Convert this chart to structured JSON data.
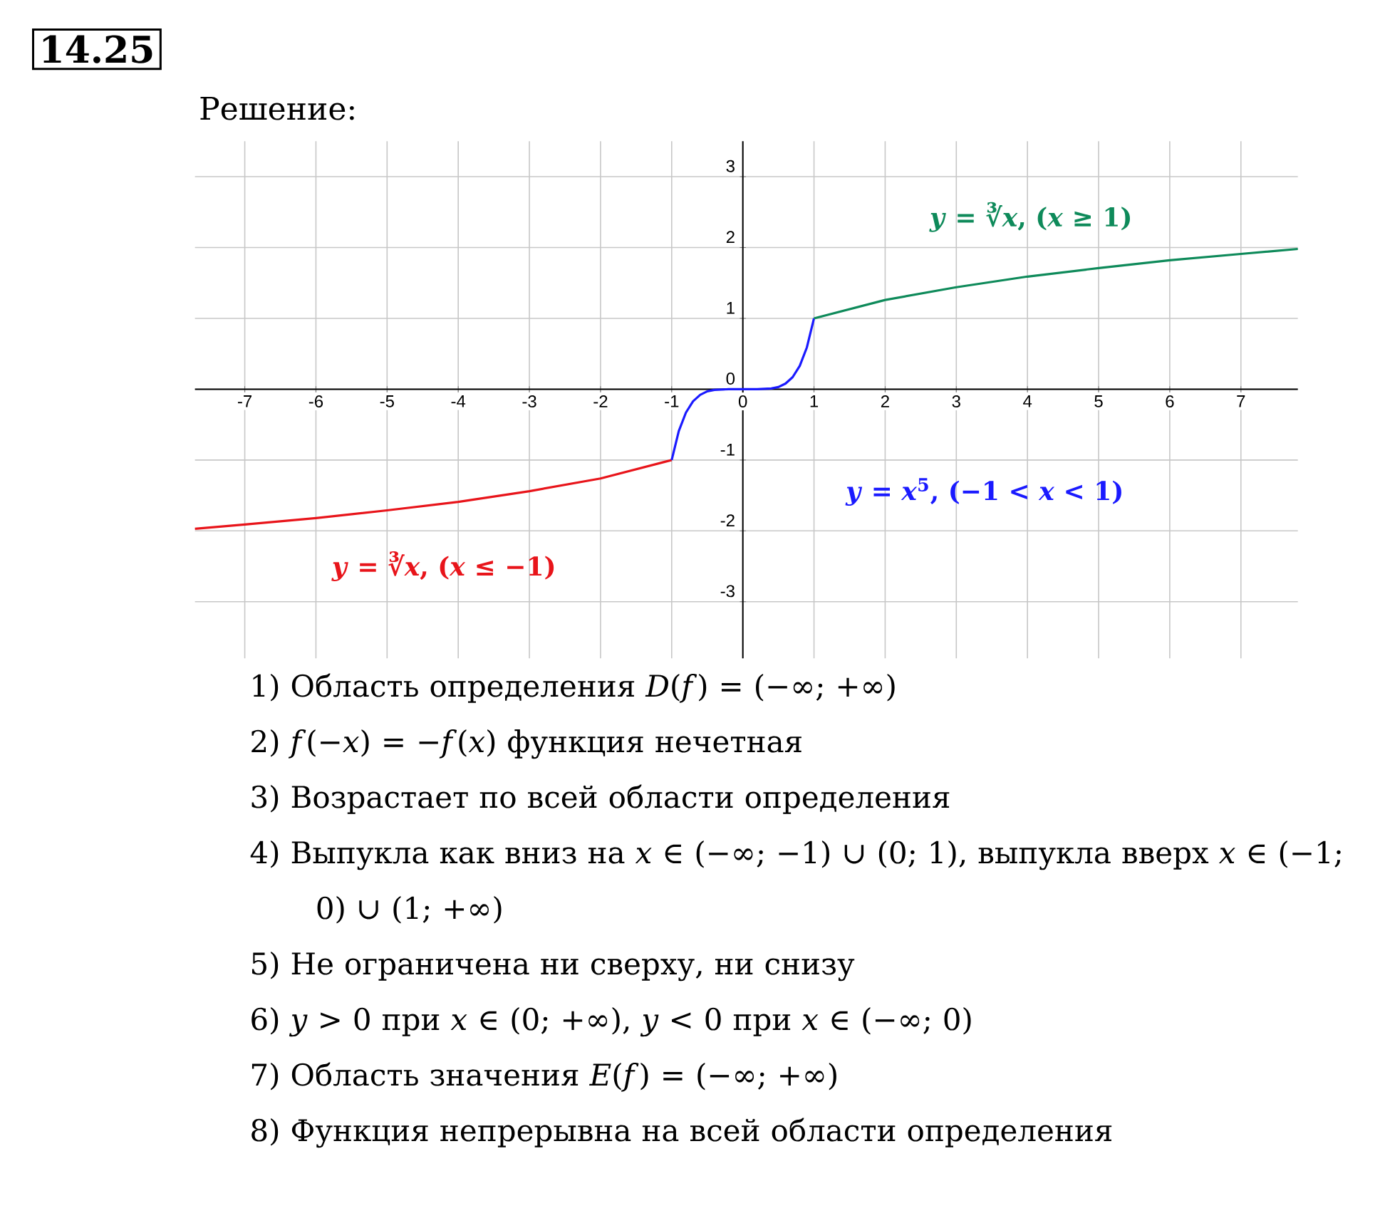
{
  "chart_data": {
    "type": "line",
    "title": "14.25",
    "subtitle": "Решение:",
    "xlim": [
      -7.7,
      7.8
    ],
    "ylim": [
      -3.8,
      3.5
    ],
    "xticks": [
      -7,
      -6,
      -5,
      -4,
      -3,
      -2,
      -1,
      0,
      1,
      2,
      3,
      4,
      5,
      6,
      7
    ],
    "yticks": [
      -3,
      -2,
      -1,
      0,
      1,
      2,
      3
    ],
    "grid": true,
    "series": [
      {
        "name": "*y* = ∛*x*,   (*x* ≤ −1)",
        "color": "#e8141a",
        "x": [
          -7.7,
          -7,
          -6,
          -5,
          -4,
          -3,
          -2,
          -1
        ],
        "values": [
          -1.97,
          -1.91,
          -1.82,
          -1.71,
          -1.59,
          -1.44,
          -1.26,
          -1
        ]
      },
      {
        "name": "*y* = *x*$^{5}$,   (−1 < *x* < 1)",
        "color": "#1a1aff",
        "x": [
          -1,
          -0.9,
          -0.8,
          -0.7,
          -0.6,
          -0.5,
          -0.4,
          -0.2,
          0,
          0.2,
          0.4,
          0.5,
          0.6,
          0.7,
          0.8,
          0.9,
          1
        ],
        "values": [
          -1,
          -0.59,
          -0.33,
          -0.17,
          -0.08,
          -0.03,
          -0.01,
          0,
          0,
          0,
          0.01,
          0.03,
          0.08,
          0.17,
          0.33,
          0.59,
          1
        ]
      },
      {
        "name": "*y* = ∛*x*,   (*x* ≥ 1)",
        "color": "#0e8a5a",
        "x": [
          1,
          2,
          3,
          4,
          5,
          6,
          7,
          7.8
        ],
        "values": [
          1,
          1.26,
          1.44,
          1.59,
          1.71,
          1.82,
          1.91,
          1.98
        ]
      }
    ],
    "annotations": [
      "1) Область определения *D*(*f*) = (−∞; +∞)",
      "2) *f*(−*x*) = −*f*(*x*) функция нечетная",
      "3) Возрастает по всей области определения",
      "4) Выпукла как вниз на *x* ∈ (−∞; −1) ∪ (0; 1), выпукла вверх *x* ∈ (−1; 0) ∪ (1; +∞)",
      "5) Не ограничена ни сверху, ни снизу",
      "6) *y* > 0 при *x* ∈ (0; +∞), *y* < 0 при *x* ∈ (−∞; 0)",
      "7) Область значения *E*(*f*) = (−∞; +∞)",
      "8) Функция непрерывна на всей области определения"
    ]
  }
}
